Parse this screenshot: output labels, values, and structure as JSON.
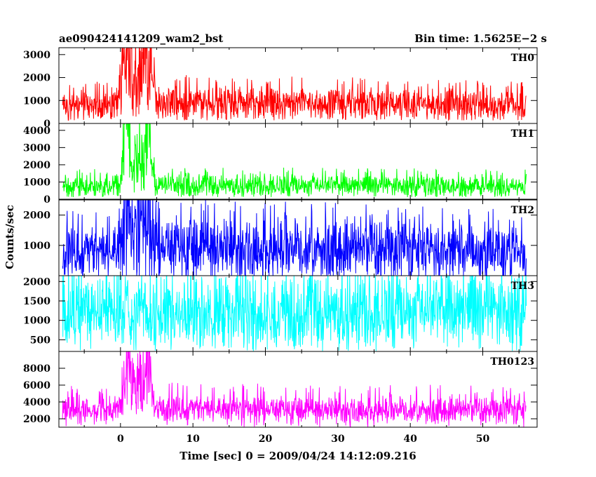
{
  "header": {
    "title": "ae090424141209_wam2_bst",
    "bin_time": "Bin time: 1.5625E−2 s"
  },
  "chart_data": {
    "type": "line",
    "xlabel": "Time [sec] 0 = 2009/04/24 14:12:09.216",
    "ylabel": "Counts/sec",
    "xlim": [
      -8.5,
      57.5
    ],
    "xticks": [
      0,
      10,
      20,
      30,
      40,
      50
    ],
    "grid": false,
    "panels": [
      {
        "name": "TH0",
        "color": "#ff0000",
        "ylim": [
          0,
          3300
        ],
        "yticks": [
          0,
          1000,
          2000,
          3000
        ],
        "series_x_range": [
          -8,
          56
        ],
        "baseline": 700,
        "low_bound": 200,
        "high_bound": 1400,
        "burst_profile": [
          {
            "t": -1,
            "value": 700
          },
          {
            "t": 0,
            "value": 1200
          },
          {
            "t": 0.5,
            "value": 2400
          },
          {
            "t": 1,
            "value": 3000
          },
          {
            "t": 1.5,
            "value": 1800
          },
          {
            "t": 2.2,
            "value": 1400
          },
          {
            "t": 3,
            "value": 2200
          },
          {
            "t": 3.8,
            "value": 3200
          },
          {
            "t": 4.5,
            "value": 1200
          },
          {
            "t": 5.5,
            "value": 800
          },
          {
            "t": 56,
            "value": 700
          }
        ]
      },
      {
        "name": "TH1",
        "color": "#00ff00",
        "ylim": [
          0,
          4400
        ],
        "yticks": [
          0,
          1000,
          2000,
          3000,
          4000
        ],
        "series_x_range": [
          -8,
          56
        ],
        "baseline": 600,
        "low_bound": 200,
        "high_bound": 1300,
        "burst_profile": [
          {
            "t": -1,
            "value": 600
          },
          {
            "t": 0,
            "value": 1000
          },
          {
            "t": 0.6,
            "value": 2800
          },
          {
            "t": 1,
            "value": 4200
          },
          {
            "t": 1.6,
            "value": 1500
          },
          {
            "t": 2.6,
            "value": 2200
          },
          {
            "t": 3.2,
            "value": 1900
          },
          {
            "t": 3.8,
            "value": 3800
          },
          {
            "t": 4.5,
            "value": 900
          },
          {
            "t": 5.5,
            "value": 650
          },
          {
            "t": 56,
            "value": 600
          }
        ]
      },
      {
        "name": "TH2",
        "color": "#0000ff",
        "ylim": [
          0,
          2500
        ],
        "yticks": [
          1000,
          2000
        ],
        "series_x_range": [
          -8,
          56
        ],
        "baseline": 650,
        "low_bound": 0,
        "high_bound": 1600,
        "burst_profile": [
          {
            "t": -1,
            "value": 650
          },
          {
            "t": 0,
            "value": 900
          },
          {
            "t": 0.8,
            "value": 1800
          },
          {
            "t": 1.5,
            "value": 1100
          },
          {
            "t": 3.8,
            "value": 1500
          },
          {
            "t": 4.5,
            "value": 800
          },
          {
            "t": 56,
            "value": 650
          }
        ]
      },
      {
        "name": "TH3",
        "color": "#00ffff",
        "ylim": [
          200,
          2150
        ],
        "yticks": [
          500,
          1000,
          1500,
          2000
        ],
        "series_x_range": [
          -8,
          56
        ],
        "baseline": 1150,
        "low_bound": 350,
        "high_bound": 2100,
        "burst_profile": [
          {
            "t": -1,
            "value": 1150
          },
          {
            "t": 56,
            "value": 1150
          }
        ]
      },
      {
        "name": "TH0123",
        "color": "#ff00ff",
        "ylim": [
          1000,
          10000
        ],
        "yticks": [
          2000,
          4000,
          6000,
          8000
        ],
        "series_x_range": [
          -8,
          56
        ],
        "baseline": 2900,
        "low_bound": 1600,
        "high_bound": 4400,
        "burst_profile": [
          {
            "t": -1,
            "value": 2900
          },
          {
            "t": 0,
            "value": 4200
          },
          {
            "t": 0.5,
            "value": 7200
          },
          {
            "t": 1,
            "value": 9200
          },
          {
            "t": 1.6,
            "value": 5600
          },
          {
            "t": 2.6,
            "value": 6600
          },
          {
            "t": 3.2,
            "value": 5800
          },
          {
            "t": 3.8,
            "value": 9500
          },
          {
            "t": 4.5,
            "value": 3800
          },
          {
            "t": 5.5,
            "value": 3100
          },
          {
            "t": 56,
            "value": 2900
          }
        ]
      }
    ]
  }
}
